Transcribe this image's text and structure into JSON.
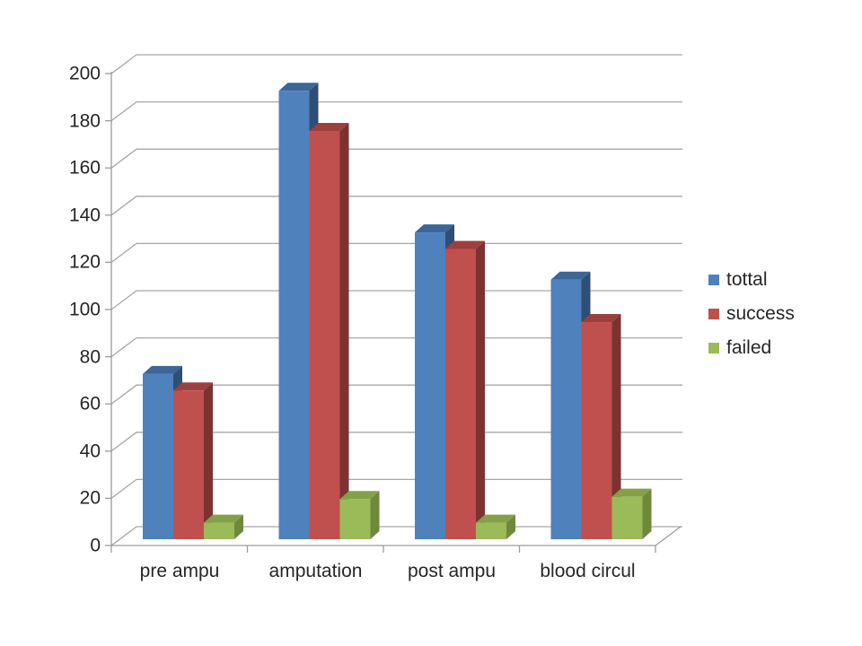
{
  "chart_data": {
    "type": "bar",
    "style": "3d-clustered-column",
    "title": "",
    "xlabel": "",
    "ylabel": "",
    "categories": [
      "pre ampu",
      "amputation",
      "post ampu",
      "blood circul"
    ],
    "series": [
      {
        "name": "tottal",
        "values": [
          70,
          190,
          130,
          110
        ],
        "color": "#4F81BD",
        "top_color": "#3C6697",
        "side_color": "#2E4E73"
      },
      {
        "name": "success",
        "values": [
          63,
          173,
          123,
          92
        ],
        "color": "#C0504D",
        "top_color": "#9C403E",
        "side_color": "#7C3230"
      },
      {
        "name": "failed",
        "values": [
          7,
          17,
          7,
          18
        ],
        "color": "#9BBB59",
        "top_color": "#84A14A",
        "side_color": "#6E893B"
      }
    ],
    "ylim": [
      0,
      200
    ],
    "ytick_step": 20,
    "yticks": [
      0,
      20,
      40,
      60,
      80,
      100,
      120,
      140,
      160,
      180,
      200
    ],
    "grid": true,
    "legend_position": "right",
    "colors": {
      "gridline": "#A6A6A6",
      "axis": "#9C9C9C",
      "text": "#262626",
      "background": "#FFFFFF"
    }
  }
}
